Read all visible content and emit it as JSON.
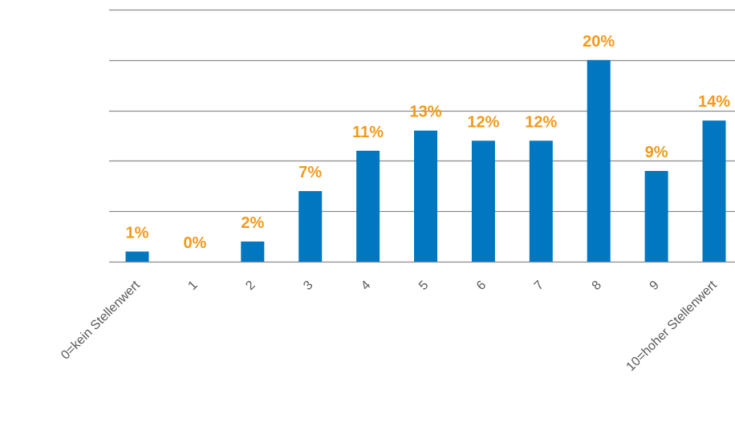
{
  "chart_data": {
    "type": "bar",
    "categories": [
      "0=kein Stellenwert",
      "1",
      "2",
      "3",
      "4",
      "5",
      "6",
      "7",
      "8",
      "9",
      "10=hoher Stellenwert"
    ],
    "values": [
      1,
      0,
      2,
      7,
      11,
      13,
      12,
      12,
      20,
      9,
      14
    ],
    "data_labels": [
      "1%",
      "0%",
      "2%",
      "7%",
      "11%",
      "13%",
      "12%",
      "12%",
      "20%",
      "9%",
      "14%"
    ],
    "ylim": [
      0,
      25
    ],
    "y_gridline_step": 5,
    "grid": true,
    "legend": "none",
    "title": "",
    "xlabel": "",
    "ylabel": "",
    "colors": {
      "bar": "#0077c0",
      "data_label": "#f29a1a",
      "gridline": "#8c8c8c",
      "tick_label": "#595959"
    }
  }
}
